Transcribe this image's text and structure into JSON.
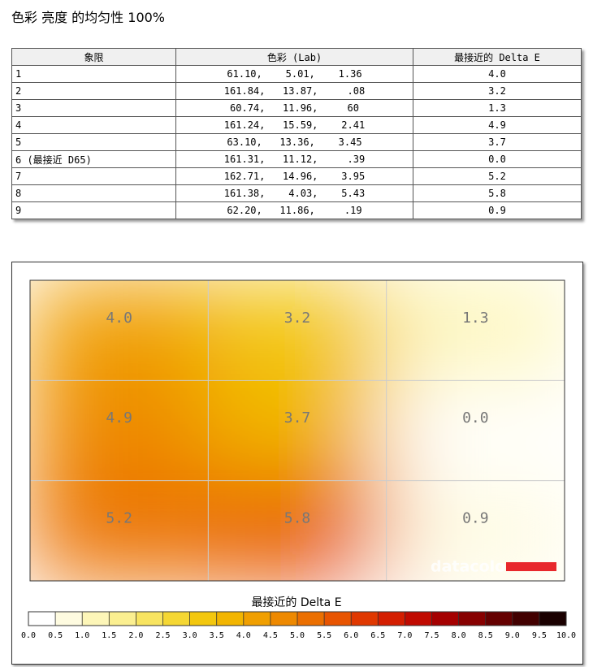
{
  "header": {
    "title": "色彩 亮度 的均匀性 100%"
  },
  "table": {
    "headers": [
      "象限",
      "色彩 (Lab)",
      "最接近的 Delta E"
    ],
    "rows": [
      [
        "1",
        "61.10,    5.01,    1.36",
        "4.0"
      ],
      [
        "2",
        "161.84,   13.87,     .08",
        "3.2"
      ],
      [
        "3",
        "60.74,   11.96,     60",
        "1.3"
      ],
      [
        "4",
        "161.24,   15.59,    2.41",
        "4.9"
      ],
      [
        "5",
        "63.10,   13.36,    3.45",
        "3.7"
      ],
      [
        "6 (最接近 D65)",
        "161.31,   11.12,     .39",
        "0.0"
      ],
      [
        "7",
        "162.71,   14.96,    3.95",
        "5.2"
      ],
      [
        "8",
        "161.38,    4.03,    5.43",
        "5.8"
      ],
      [
        "9",
        "62.20,   11.86,     .19",
        "0.9"
      ]
    ]
  },
  "heatmap": {
    "values": [
      [
        4.0,
        3.2,
        1.3
      ],
      [
        4.9,
        3.7,
        0.0
      ],
      [
        5.2,
        5.8,
        0.9
      ]
    ],
    "value_labels": [
      [
        "4.0",
        "3.2",
        "1.3"
      ],
      [
        "4.9",
        "3.7",
        "0.0"
      ],
      [
        "5.2",
        "5.8",
        "0.9"
      ]
    ],
    "watermark": "datacolor"
  },
  "colorbar": {
    "title": "最接近的 Delta E",
    "range": [
      0,
      10
    ],
    "colors": [
      "#ffffff",
      "#fefbe0",
      "#fdf6b8",
      "#fbef90",
      "#f8e460",
      "#f5d733",
      "#f3c70e",
      "#f2b500",
      "#f09f00",
      "#ee8900",
      "#eb6f00",
      "#e85400",
      "#e03800",
      "#d41e00",
      "#c00a00",
      "#a50000",
      "#870000",
      "#650000",
      "#420000",
      "#1a0000"
    ],
    "ticks": [
      {
        "value": 0,
        "label": "0.0"
      },
      0.5,
      {
        "value": 1,
        "label": "1.0"
      },
      1.5,
      {
        "value": 2,
        "label": "2.0"
      },
      2.5,
      {
        "value": 3,
        "label": "3.0"
      },
      3.5,
      {
        "value": 4,
        "label": "4.0"
      },
      4.5,
      {
        "value": 5,
        "label": "5.0"
      },
      5.5,
      {
        "value": 6,
        "label": "6.0"
      },
      6.5,
      {
        "value": 7,
        "label": "7.0"
      },
      7.5,
      {
        "value": 8,
        "label": "8.0"
      },
      8.5,
      {
        "value": 9,
        "label": "9.0"
      },
      9.5,
      {
        "value": 10,
        "label": "10.0"
      }
    ]
  }
}
